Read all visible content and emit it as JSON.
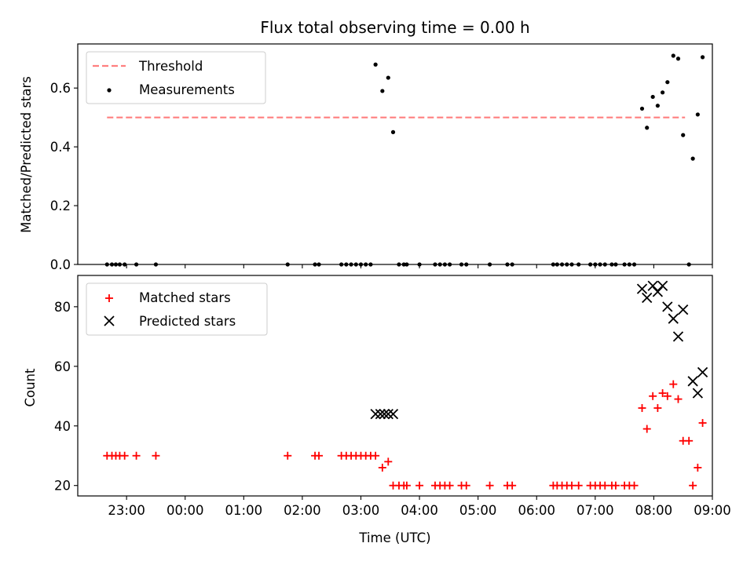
{
  "chart_data": {
    "title": "Flux total observing time = 0.00 h",
    "xlabel": "Time (UTC)",
    "x_range": [
      "22:10",
      "09:00"
    ],
    "x_ticks": [
      "23:00",
      "00:00",
      "01:00",
      "02:00",
      "03:00",
      "04:00",
      "05:00",
      "06:00",
      "07:00",
      "08:00",
      "09:00"
    ],
    "panels": [
      {
        "type": "scatter",
        "ylabel": "Matched/Predicted stars",
        "ylim": [
          0,
          0.75
        ],
        "y_ticks": [
          "0.0",
          "0.2",
          "0.4",
          "0.6"
        ],
        "legend_position": "top-left",
        "series": [
          {
            "name": "Threshold",
            "kind": "line",
            "style": "dashed",
            "color": "#ff7f7f",
            "points": [
              [
                "22:40",
                0.5
              ],
              [
                "08:32",
                0.5
              ]
            ]
          },
          {
            "name": "Measurements",
            "kind": "scatter",
            "marker": "dot",
            "color": "#000000",
            "points": [
              [
                "22:40",
                0
              ],
              [
                "22:45",
                0
              ],
              [
                "22:49",
                0
              ],
              [
                "22:53",
                0
              ],
              [
                "22:58",
                0
              ],
              [
                "23:10",
                0
              ],
              [
                "23:30",
                0
              ],
              [
                "01:45",
                0
              ],
              [
                "02:13",
                0
              ],
              [
                "02:17",
                0
              ],
              [
                "02:40",
                0
              ],
              [
                "02:45",
                0
              ],
              [
                "02:50",
                0
              ],
              [
                "02:55",
                0
              ],
              [
                "03:00",
                0
              ],
              [
                "03:05",
                0
              ],
              [
                "03:10",
                0
              ],
              [
                "03:15",
                0.68
              ],
              [
                "03:22",
                0.59
              ],
              [
                "03:28",
                0.635
              ],
              [
                "03:33",
                0.45
              ],
              [
                "03:39",
                0
              ],
              [
                "03:44",
                0
              ],
              [
                "03:47",
                0
              ],
              [
                "04:00",
                0
              ],
              [
                "04:16",
                0
              ],
              [
                "04:21",
                0
              ],
              [
                "04:26",
                0
              ],
              [
                "04:31",
                0
              ],
              [
                "04:43",
                0
              ],
              [
                "04:48",
                0
              ],
              [
                "05:12",
                0
              ],
              [
                "05:30",
                0
              ],
              [
                "05:35",
                0
              ],
              [
                "06:17",
                0
              ],
              [
                "06:21",
                0
              ],
              [
                "06:26",
                0
              ],
              [
                "06:31",
                0
              ],
              [
                "06:36",
                0
              ],
              [
                "06:43",
                0
              ],
              [
                "06:55",
                0
              ],
              [
                "07:00",
                0
              ],
              [
                "07:05",
                0
              ],
              [
                "07:10",
                0
              ],
              [
                "07:17",
                0
              ],
              [
                "07:21",
                0
              ],
              [
                "07:30",
                0
              ],
              [
                "07:35",
                0
              ],
              [
                "07:40",
                0
              ],
              [
                "07:48",
                0.53
              ],
              [
                "07:53",
                0.465
              ],
              [
                "07:59",
                0.57
              ],
              [
                "08:04",
                0.54
              ],
              [
                "08:09",
                0.585
              ],
              [
                "08:14",
                0.62
              ],
              [
                "08:20",
                0.71
              ],
              [
                "08:25",
                0.7
              ],
              [
                "08:30",
                0.44
              ],
              [
                "08:36",
                0
              ],
              [
                "08:40",
                0.36
              ],
              [
                "08:45",
                0.51
              ],
              [
                "08:50",
                0.705
              ]
            ]
          }
        ]
      },
      {
        "type": "scatter",
        "ylabel": "Count",
        "ylim": [
          16.5,
          90.5
        ],
        "y_ticks": [
          "20",
          "40",
          "60",
          "80"
        ],
        "legend_position": "top-left",
        "series": [
          {
            "name": "Matched stars",
            "kind": "scatter",
            "marker": "plus",
            "color": "#ff0000",
            "points": [
              [
                "22:40",
                30
              ],
              [
                "22:45",
                30
              ],
              [
                "22:49",
                30
              ],
              [
                "22:53",
                30
              ],
              [
                "22:58",
                30
              ],
              [
                "23:10",
                30
              ],
              [
                "23:30",
                30
              ],
              [
                "01:45",
                30
              ],
              [
                "02:13",
                30
              ],
              [
                "02:17",
                30
              ],
              [
                "02:40",
                30
              ],
              [
                "02:45",
                30
              ],
              [
                "02:50",
                30
              ],
              [
                "02:55",
                30
              ],
              [
                "03:00",
                30
              ],
              [
                "03:05",
                30
              ],
              [
                "03:10",
                30
              ],
              [
                "03:15",
                30
              ],
              [
                "03:22",
                26
              ],
              [
                "03:28",
                28
              ],
              [
                "03:33",
                20
              ],
              [
                "03:39",
                20
              ],
              [
                "03:44",
                20
              ],
              [
                "03:47",
                20
              ],
              [
                "04:00",
                20
              ],
              [
                "04:16",
                20
              ],
              [
                "04:21",
                20
              ],
              [
                "04:26",
                20
              ],
              [
                "04:31",
                20
              ],
              [
                "04:43",
                20
              ],
              [
                "04:48",
                20
              ],
              [
                "05:12",
                20
              ],
              [
                "05:30",
                20
              ],
              [
                "05:35",
                20
              ],
              [
                "06:17",
                20
              ],
              [
                "06:21",
                20
              ],
              [
                "06:26",
                20
              ],
              [
                "06:31",
                20
              ],
              [
                "06:36",
                20
              ],
              [
                "06:43",
                20
              ],
              [
                "06:55",
                20
              ],
              [
                "07:00",
                20
              ],
              [
                "07:05",
                20
              ],
              [
                "07:10",
                20
              ],
              [
                "07:17",
                20
              ],
              [
                "07:21",
                20
              ],
              [
                "07:30",
                20
              ],
              [
                "07:35",
                20
              ],
              [
                "07:40",
                20
              ],
              [
                "07:48",
                46
              ],
              [
                "07:53",
                39
              ],
              [
                "07:59",
                50
              ],
              [
                "08:04",
                46
              ],
              [
                "08:09",
                51
              ],
              [
                "08:14",
                50
              ],
              [
                "08:20",
                54
              ],
              [
                "08:25",
                49
              ],
              [
                "08:30",
                35
              ],
              [
                "08:36",
                35
              ],
              [
                "08:40",
                20
              ],
              [
                "08:45",
                26
              ],
              [
                "08:50",
                41
              ]
            ]
          },
          {
            "name": "Predicted stars",
            "kind": "scatter",
            "marker": "x",
            "color": "#000000",
            "points": [
              [
                "03:15",
                44
              ],
              [
                "03:20",
                44
              ],
              [
                "03:24",
                44
              ],
              [
                "03:28",
                44
              ],
              [
                "03:33",
                44
              ],
              [
                "07:48",
                86
              ],
              [
                "07:53",
                83
              ],
              [
                "07:59",
                87
              ],
              [
                "08:04",
                85
              ],
              [
                "08:09",
                87
              ],
              [
                "08:14",
                80
              ],
              [
                "08:20",
                76
              ],
              [
                "08:25",
                70
              ],
              [
                "08:30",
                79
              ],
              [
                "08:40",
                55
              ],
              [
                "08:45",
                51
              ],
              [
                "08:50",
                58
              ]
            ]
          }
        ]
      }
    ]
  }
}
